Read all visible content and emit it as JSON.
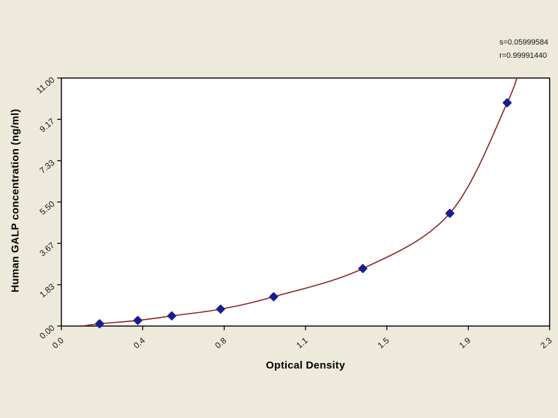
{
  "stats": {
    "s_label": "s=0.05999584",
    "r_label": "r=0.99991440"
  },
  "chart_data": {
    "type": "scatter",
    "title": "",
    "xlabel": "Optical Density",
    "ylabel": "Human GALP concentration (ng/ml)",
    "xlim": [
      0.0,
      2.3
    ],
    "ylim": [
      0.0,
      11.0
    ],
    "grid": false,
    "legend": "none",
    "x_ticks": {
      "values": [
        0,
        0.383,
        0.767,
        1.15,
        1.533,
        1.917,
        2.3
      ],
      "labels": [
        "0.0",
        "0.4",
        "0.8",
        "1.1",
        "1.5",
        "1.9",
        "2.3"
      ]
    },
    "y_ticks": {
      "values": [
        0,
        1.833,
        3.667,
        5.5,
        7.333,
        9.167,
        11
      ],
      "labels": [
        "0.00",
        "1.83",
        "3.67",
        "5.50",
        "7.33",
        "9.17",
        "11.00"
      ]
    },
    "series": [
      {
        "name": "standard-points",
        "type": "scatter",
        "marker": "diamond",
        "color": "#1c1c90",
        "points": [
          [
            0.18,
            0.1
          ],
          [
            0.36,
            0.25
          ],
          [
            0.52,
            0.45
          ],
          [
            0.75,
            0.75
          ],
          [
            1.0,
            1.3
          ],
          [
            1.42,
            2.55
          ],
          [
            1.83,
            5.0
          ],
          [
            2.1,
            9.9
          ]
        ]
      },
      {
        "name": "fit-curve",
        "type": "line",
        "color": "#8b1c1c",
        "through": "standard-points",
        "extension": [
          [
            0.1,
            0.0
          ],
          [
            2.16,
            11.6
          ]
        ]
      }
    ],
    "annotations": [
      "s=0.05999584",
      "r=0.99991440"
    ],
    "plot_background": "#ffffff",
    "page_background": "#eeeadb"
  }
}
